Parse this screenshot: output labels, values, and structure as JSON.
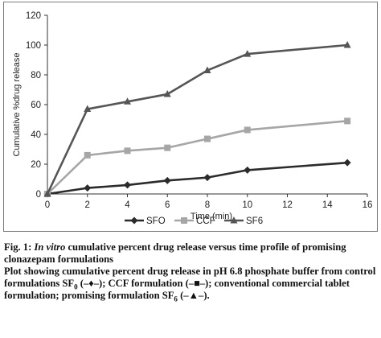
{
  "chart_data": {
    "type": "line",
    "ylabel": "Cumulative %drug release",
    "xlabel": "Time (min)",
    "xlim": [
      0,
      16
    ],
    "ylim": [
      0,
      120
    ],
    "xticks": [
      0,
      2,
      4,
      6,
      8,
      10,
      12,
      14,
      16
    ],
    "yticks": [
      0,
      20,
      40,
      60,
      80,
      100,
      120
    ],
    "grid": false,
    "legend_position": "bottom",
    "series": [
      {
        "name": "SFO",
        "marker": "diamond",
        "color": "#2b2b2b",
        "x": [
          0,
          2,
          4,
          6,
          8,
          10,
          15
        ],
        "y": [
          0,
          4,
          6,
          9,
          11,
          16,
          21
        ]
      },
      {
        "name": "CCF",
        "marker": "square",
        "color": "#a6a6a6",
        "x": [
          0,
          2,
          4,
          6,
          8,
          10,
          15
        ],
        "y": [
          0,
          26,
          29,
          31,
          37,
          43,
          49
        ]
      },
      {
        "name": "SF6",
        "marker": "triangle",
        "color": "#555555",
        "x": [
          0,
          2,
          4,
          6,
          8,
          10,
          15
        ],
        "y": [
          0,
          57,
          62,
          67,
          83,
          94,
          100
        ]
      }
    ]
  },
  "caption": {
    "fig_label": "Fig. 1:",
    "italic_part": "In vitro",
    "title_rest": "cumulative percent drug release versus time profile of promising clonazepam formulations",
    "line2_a": "Plot showing cumulative percent drug release in pH 6.8 phosphate buffer from control formulations SF",
    "sub0": "0",
    "sym_sfo": "(–♦–);",
    "ccf_text": "CCF formulation",
    "sym_ccf": "(–■–);",
    "line2_b": "conventional commercial tablet formulation; promising formulation SF",
    "sub6": "6",
    "sym_sf6": "(–▲–)."
  }
}
